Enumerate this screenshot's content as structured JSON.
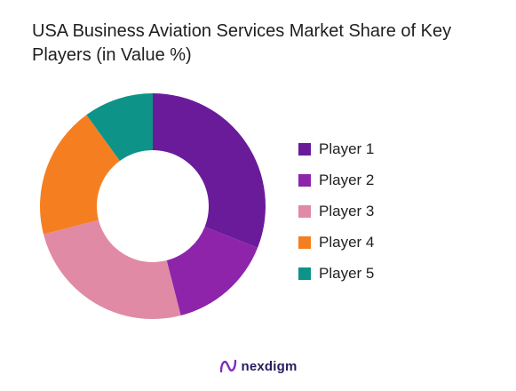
{
  "chart_data": {
    "type": "pie",
    "title": "USA Business Aviation Services Market Share of Key Players (in Value %)",
    "categories": [
      "Player 1",
      "Player 2",
      "Player 3",
      "Player 4",
      "Player 5"
    ],
    "values": [
      31,
      15,
      25,
      19,
      10
    ],
    "unit": "%",
    "colors": [
      "#6a1b9a",
      "#8e24aa",
      "#e08aa5",
      "#f57f20",
      "#0e9388"
    ],
    "donut": true,
    "legend_position": "right"
  },
  "brand": {
    "name": "nexdigm",
    "logo_color": "#7b2fbf"
  }
}
